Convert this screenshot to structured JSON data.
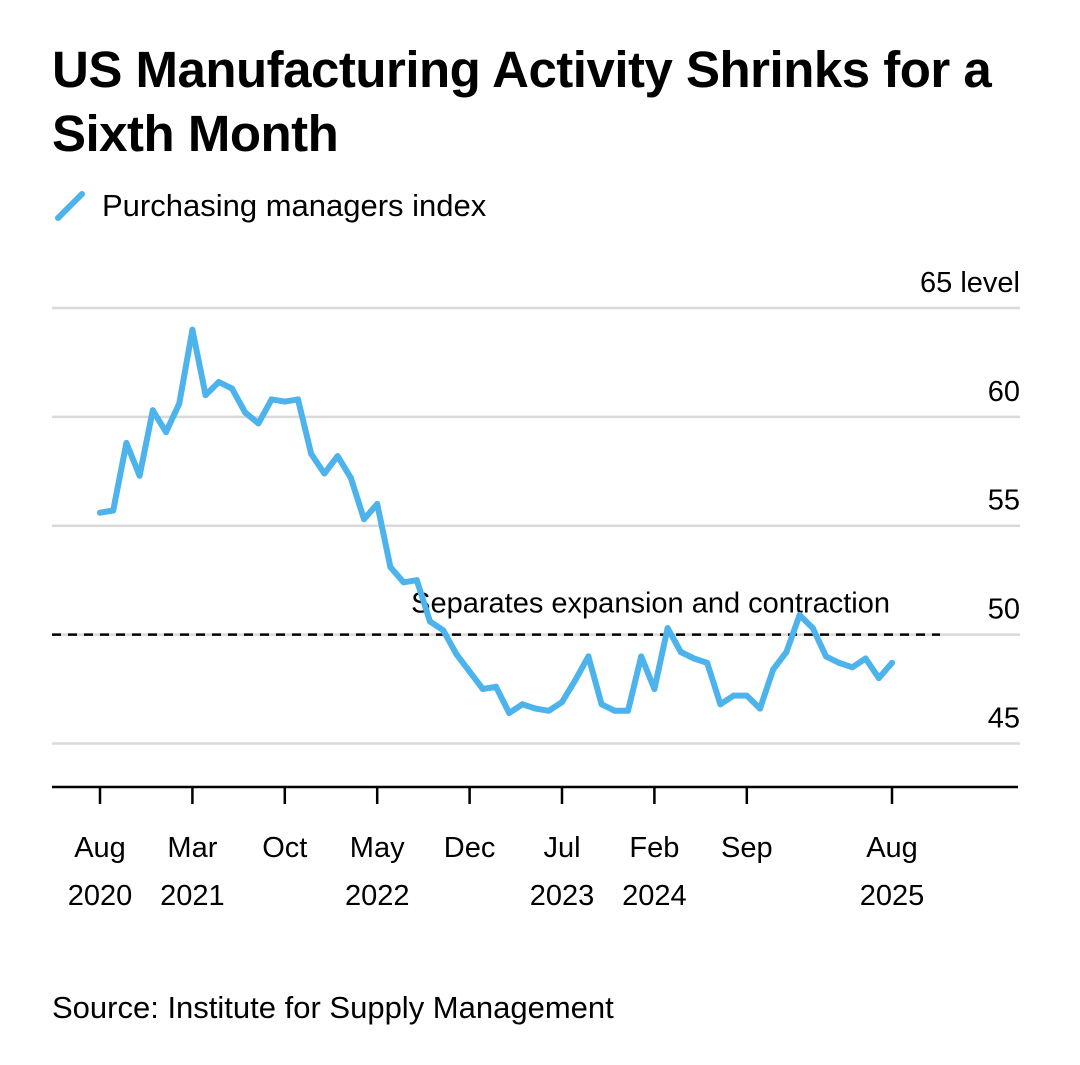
{
  "title": "US Manufacturing Activity Shrinks for a Sixth Month",
  "source": "Source: Institute for Supply Management",
  "colors": {
    "series": "#4db3ec",
    "grid": "#d9d9d9",
    "threshold": "#000000"
  },
  "chart_data": {
    "type": "line",
    "title": "US Manufacturing Activity Shrinks for a Sixth Month",
    "ylabel": "level",
    "ylim": [
      43,
      65
    ],
    "yticks": [
      65,
      60,
      55,
      50,
      45
    ],
    "ytick_labels": [
      "65 level",
      "60",
      "55",
      "50",
      "45"
    ],
    "grid": true,
    "legend_position": "top-left",
    "xticks": [
      {
        "x": "2020-08",
        "line1": "Aug",
        "line2": "2020"
      },
      {
        "x": "2021-03",
        "line1": "Mar",
        "line2": "2021"
      },
      {
        "x": "2021-10",
        "line1": "Oct",
        "line2": ""
      },
      {
        "x": "2022-05",
        "line1": "May",
        "line2": "2022"
      },
      {
        "x": "2022-12",
        "line1": "Dec",
        "line2": ""
      },
      {
        "x": "2023-07",
        "line1": "Jul",
        "line2": "2023"
      },
      {
        "x": "2024-02",
        "line1": "Feb",
        "line2": "2024"
      },
      {
        "x": "2024-09",
        "line1": "Sep",
        "line2": ""
      },
      {
        "x": "2025-08",
        "line1": "Aug",
        "line2": "2025"
      }
    ],
    "reference_line": {
      "y": 50,
      "label": "Separates expansion and contraction"
    },
    "series": [
      {
        "name": "Purchasing managers index",
        "x": [
          "2020-08",
          "2020-09",
          "2020-10",
          "2020-11",
          "2020-12",
          "2021-01",
          "2021-02",
          "2021-03",
          "2021-04",
          "2021-05",
          "2021-06",
          "2021-07",
          "2021-08",
          "2021-09",
          "2021-10",
          "2021-11",
          "2021-12",
          "2022-01",
          "2022-02",
          "2022-03",
          "2022-04",
          "2022-05",
          "2022-06",
          "2022-07",
          "2022-08",
          "2022-09",
          "2022-10",
          "2022-11",
          "2022-12",
          "2023-01",
          "2023-02",
          "2023-03",
          "2023-04",
          "2023-05",
          "2023-06",
          "2023-07",
          "2023-08",
          "2023-09",
          "2023-10",
          "2023-11",
          "2023-12",
          "2024-01",
          "2024-02",
          "2024-03",
          "2024-04",
          "2024-05",
          "2024-06",
          "2024-07",
          "2024-08",
          "2024-09",
          "2024-10",
          "2024-11",
          "2024-12",
          "2025-01",
          "2025-02",
          "2025-03",
          "2025-04",
          "2025-05",
          "2025-06",
          "2025-07",
          "2025-08"
        ],
        "values": [
          55.6,
          55.7,
          58.8,
          57.3,
          60.3,
          59.3,
          60.6,
          64.0,
          61.0,
          61.6,
          61.3,
          60.2,
          59.7,
          60.8,
          60.7,
          60.8,
          58.3,
          57.4,
          58.2,
          57.2,
          55.3,
          56.0,
          53.1,
          52.4,
          52.5,
          50.6,
          50.2,
          49.1,
          48.3,
          47.5,
          47.6,
          46.4,
          46.8,
          46.6,
          46.5,
          46.9,
          47.9,
          49.0,
          46.8,
          46.5,
          46.5,
          49.0,
          47.5,
          50.3,
          49.2,
          48.9,
          48.7,
          46.8,
          47.2,
          47.2,
          46.6,
          48.4,
          49.2,
          50.9,
          50.3,
          49.0,
          48.7,
          48.5,
          48.9,
          48.0,
          48.7
        ]
      }
    ]
  }
}
